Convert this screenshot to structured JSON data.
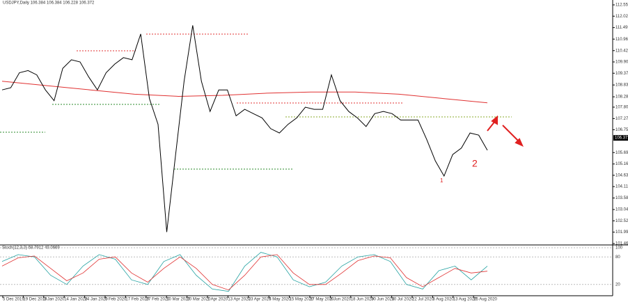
{
  "header": {
    "title": "USDJPY,Daily  106.384 106.384 106.228 106.372"
  },
  "chart_data": {
    "type": "line",
    "price": {
      "name": "USDJPY",
      "color": "#000000",
      "values": [
        108.6,
        108.7,
        109.4,
        109.5,
        109.3,
        108.6,
        108.1,
        109.6,
        110.0,
        109.9,
        109.2,
        108.6,
        109.4,
        109.8,
        110.1,
        110.0,
        111.2,
        108.2,
        107.0,
        102.0,
        105.5,
        109.0,
        111.6,
        109.0,
        107.6,
        108.6,
        108.6,
        107.4,
        107.7,
        107.5,
        107.3,
        106.8,
        106.6,
        107.0,
        107.3,
        107.8,
        107.7,
        107.7,
        109.3,
        108.1,
        107.6,
        107.3,
        106.9,
        107.5,
        107.6,
        107.5,
        107.2,
        107.2,
        107.2,
        106.3,
        105.3,
        104.6,
        105.6,
        105.9,
        106.6,
        106.5,
        105.8
      ]
    },
    "ma": {
      "name": "MA",
      "color": "#e03030",
      "values": [
        109.0,
        108.8,
        108.6,
        108.4,
        108.3,
        108.35,
        108.45,
        108.5,
        108.5,
        108.4,
        108.2,
        108.0
      ]
    },
    "last_price": {
      "value": 106.372,
      "label": "106.372"
    },
    "ylim": [
      101.465,
      112.55
    ],
    "yticks": [
      {
        "value": 112.55,
        "label": "112.550"
      },
      {
        "value": 112.025,
        "label": "112.025"
      },
      {
        "value": 111.495,
        "label": "111.495"
      },
      {
        "value": 110.96,
        "label": "110.960"
      },
      {
        "value": 110.425,
        "label": "110.425"
      },
      {
        "value": 109.9,
        "label": "109.900"
      },
      {
        "value": 109.375,
        "label": "109.375"
      },
      {
        "value": 108.83,
        "label": "108.830"
      },
      {
        "value": 108.28,
        "label": "108.280"
      },
      {
        "value": 107.8,
        "label": "107.800"
      },
      {
        "value": 107.27,
        "label": "107.270"
      },
      {
        "value": 106.75,
        "label": "106.750"
      },
      {
        "value": 105.69,
        "label": "105.690"
      },
      {
        "value": 105.16,
        "label": "105.160"
      },
      {
        "value": 104.635,
        "label": "104.635"
      },
      {
        "value": 104.11,
        "label": "104.110"
      },
      {
        "value": 103.58,
        "label": "103.580"
      },
      {
        "value": 103.045,
        "label": "103.045"
      },
      {
        "value": 102.52,
        "label": "102.520"
      },
      {
        "value": 101.995,
        "label": "101.995"
      },
      {
        "value": 101.465,
        "label": "101.465"
      }
    ],
    "annotations": [
      "1",
      "2"
    ],
    "categories": [
      "5 Dec 2019",
      "19 Dec 2019",
      "3 Jan 2020",
      "14 Jan 2020",
      "24 Jan 2020",
      "5 Feb 2020",
      "17 Feb 2020",
      "27 Feb 2020",
      "10 Mar 2020",
      "20 Mar 2020",
      "1 Apr 2020",
      "13 Apr 2020",
      "23 Apr 2020",
      "5 May 2020",
      "15 May 2020",
      "27 May 2020",
      "8 Jun 2020",
      "18 Jun 2020",
      "30 Jun 2020",
      "10 Jul 2020",
      "22 Jul 2020",
      "3 Aug 2020",
      "13 Aug 2020",
      "25 Aug 2020"
    ]
  },
  "stoch": {
    "title": "Stoch(12,3,3) 58.7912 49.0669",
    "series": [
      {
        "name": "main",
        "color": "#20a0a0",
        "values": [
          70,
          85,
          80,
          40,
          20,
          60,
          85,
          75,
          30,
          20,
          70,
          85,
          40,
          10,
          5,
          60,
          90,
          80,
          30,
          15,
          25,
          60,
          80,
          85,
          70,
          20,
          10,
          50,
          60,
          30,
          60
        ]
      },
      {
        "name": "signal",
        "color": "#e03030",
        "values": [
          60,
          78,
          82,
          55,
          28,
          45,
          75,
          80,
          45,
          25,
          55,
          80,
          55,
          20,
          8,
          40,
          80,
          85,
          45,
          20,
          20,
          45,
          72,
          82,
          78,
          35,
          15,
          35,
          55,
          45,
          49
        ]
      }
    ],
    "ylim": [
      0,
      100
    ],
    "yticks": [
      100,
      80,
      20
    ]
  }
}
